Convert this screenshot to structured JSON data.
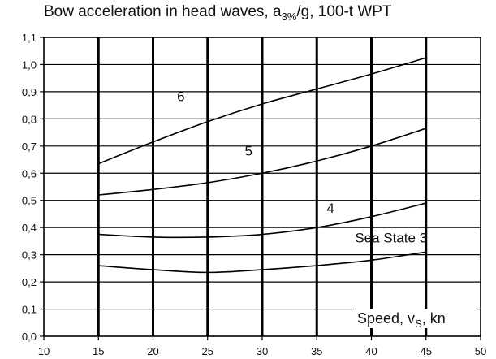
{
  "chart_data": {
    "type": "line",
    "title": "Bow acceleration in head waves, a3%/g, 100-t WPT",
    "title_parts": {
      "before": "Bow acceleration in head waves, a",
      "subscript": "3%",
      "after": "/g, 100-t WPT"
    },
    "xlabel": "Speed, vS, kn",
    "xlabel_parts": {
      "before": "Speed, v",
      "subscript": "S",
      "after": ", kn"
    },
    "ylabel": "",
    "xlim": [
      10,
      50
    ],
    "ylim": [
      0.0,
      1.1
    ],
    "x_ticks": [
      10,
      15,
      20,
      25,
      30,
      35,
      40,
      45,
      50
    ],
    "x_tick_labels": [
      "10",
      "15",
      "20",
      "25",
      "30",
      "35",
      "40",
      "45",
      "50"
    ],
    "y_ticks": [
      0.0,
      0.1,
      0.2,
      0.3,
      0.4,
      0.5,
      0.6,
      0.7,
      0.8,
      0.9,
      1.0,
      1.1
    ],
    "y_tick_labels": [
      "0,0",
      "0,1",
      "0,2",
      "0,3",
      "0,4",
      "0,5",
      "0,6",
      "0,7",
      "0,8",
      "0,9",
      "1,0",
      "1,1"
    ],
    "grid": true,
    "series": [
      {
        "name": "Sea State 3",
        "x": [
          15,
          20,
          25,
          30,
          35,
          40,
          45
        ],
        "y": [
          0.26,
          0.245,
          0.235,
          0.245,
          0.26,
          0.28,
          0.31
        ]
      },
      {
        "name": "4",
        "x": [
          15,
          20,
          25,
          30,
          35,
          40,
          45
        ],
        "y": [
          0.375,
          0.365,
          0.365,
          0.375,
          0.4,
          0.44,
          0.49
        ]
      },
      {
        "name": "5",
        "x": [
          15,
          20,
          25,
          30,
          35,
          40,
          45
        ],
        "y": [
          0.52,
          0.54,
          0.565,
          0.6,
          0.645,
          0.7,
          0.765
        ]
      },
      {
        "name": "6",
        "x": [
          15,
          20,
          25,
          30,
          35,
          40,
          45
        ],
        "y": [
          0.635,
          0.715,
          0.79,
          0.855,
          0.91,
          0.965,
          1.025
        ]
      }
    ],
    "annotations": [
      {
        "text": "6",
        "x": 22.2,
        "y": 0.865
      },
      {
        "text": "5",
        "x": 28.4,
        "y": 0.665
      },
      {
        "text": "4",
        "x": 35.9,
        "y": 0.455
      },
      {
        "text": "Sea State 3",
        "x": 38.5,
        "y": 0.345
      }
    ]
  }
}
